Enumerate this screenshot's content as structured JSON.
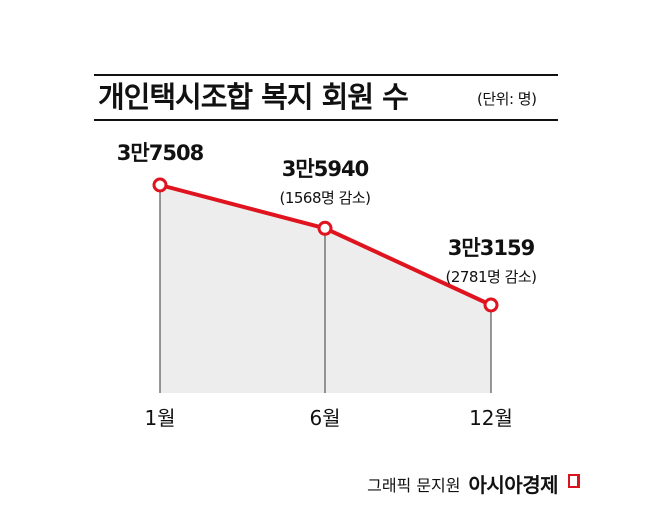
{
  "title": "개인택시조합 복지 회원 수",
  "unit": "(단위: 명)",
  "credit": {
    "graphic": "그래픽 문지원",
    "brand": "아시아경제"
  },
  "colors": {
    "line": "#e0141e",
    "area": "#ededed",
    "drop": "#555555",
    "text": "#111111"
  },
  "chart_data": {
    "type": "line",
    "title": "개인택시조합 복지 회원 수",
    "unit": "(단위: 명)",
    "categories": [
      "1월",
      "6월",
      "12월"
    ],
    "values": [
      37508,
      35940,
      33159
    ],
    "value_labels": [
      "3만7508",
      "3만5940",
      "3만3159"
    ],
    "annotations": [
      "",
      "(1568명 감소)",
      "(2781명 감소)"
    ],
    "area_fill": true,
    "grid": false,
    "legend": "none"
  }
}
